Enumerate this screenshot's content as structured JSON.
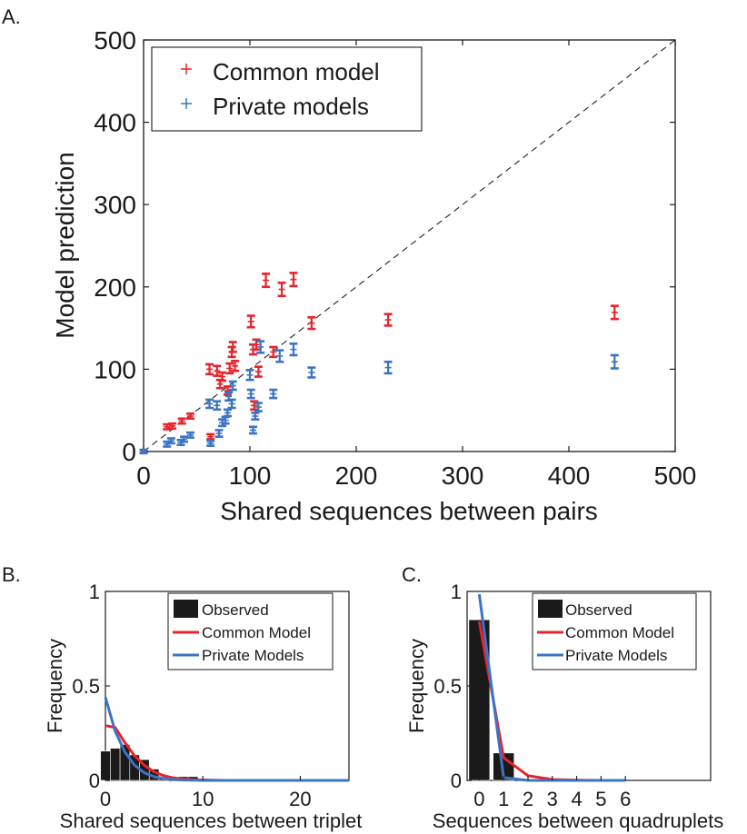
{
  "colors": {
    "common": "#e8232b",
    "private": "#3b74c3",
    "observed": "#1a1a1a",
    "diagonal": "#222222"
  },
  "chart_data": [
    {
      "panel": "A.",
      "type": "scatter",
      "xlabel": "Shared sequences between pairs",
      "ylabel": "Model prediction",
      "xlim": [
        0,
        500
      ],
      "ylim": [
        0,
        500
      ],
      "xticks": [
        "0",
        "100",
        "200",
        "300",
        "400",
        "500"
      ],
      "yticks": [
        "0",
        "100",
        "200",
        "300",
        "400",
        "500"
      ],
      "legend": {
        "position": "top-left",
        "marker": "+",
        "entries": [
          "Common model",
          "Private models"
        ]
      },
      "diagonal": "y = x (dashed)",
      "series": [
        {
          "name": "Common model",
          "points": [
            {
              "x": 0,
              "y": 0,
              "err": 2
            },
            {
              "x": 22,
              "y": 30,
              "err": 3
            },
            {
              "x": 27,
              "y": 31,
              "err": 3
            },
            {
              "x": 36,
              "y": 37,
              "err": 3
            },
            {
              "x": 44,
              "y": 43,
              "err": 3
            },
            {
              "x": 63,
              "y": 18,
              "err": 3
            },
            {
              "x": 62,
              "y": 100,
              "err": 6
            },
            {
              "x": 69,
              "y": 98,
              "err": 6
            },
            {
              "x": 72,
              "y": 82,
              "err": 5
            },
            {
              "x": 74,
              "y": 91,
              "err": 5
            },
            {
              "x": 79,
              "y": 74,
              "err": 5
            },
            {
              "x": 81,
              "y": 101,
              "err": 6
            },
            {
              "x": 83,
              "y": 121,
              "err": 6
            },
            {
              "x": 84,
              "y": 127,
              "err": 6
            },
            {
              "x": 86,
              "y": 104,
              "err": 6
            },
            {
              "x": 101,
              "y": 158,
              "err": 7
            },
            {
              "x": 103,
              "y": 124,
              "err": 6
            },
            {
              "x": 104,
              "y": 56,
              "err": 5
            },
            {
              "x": 106,
              "y": 130,
              "err": 6
            },
            {
              "x": 108,
              "y": 97,
              "err": 6
            },
            {
              "x": 115,
              "y": 208,
              "err": 8
            },
            {
              "x": 122,
              "y": 121,
              "err": 6
            },
            {
              "x": 130,
              "y": 197,
              "err": 8
            },
            {
              "x": 141,
              "y": 209,
              "err": 8
            },
            {
              "x": 158,
              "y": 156,
              "err": 7
            },
            {
              "x": 230,
              "y": 160,
              "err": 7
            },
            {
              "x": 443,
              "y": 169,
              "err": 8
            }
          ]
        },
        {
          "name": "Private models",
          "points": [
            {
              "x": 0,
              "y": 0,
              "err": 2
            },
            {
              "x": 22,
              "y": 9,
              "err": 3
            },
            {
              "x": 26,
              "y": 13,
              "err": 3
            },
            {
              "x": 35,
              "y": 11,
              "err": 3
            },
            {
              "x": 38,
              "y": 15,
              "err": 3
            },
            {
              "x": 44,
              "y": 20,
              "err": 3
            },
            {
              "x": 63,
              "y": 10,
              "err": 3
            },
            {
              "x": 62,
              "y": 58,
              "err": 5
            },
            {
              "x": 69,
              "y": 56,
              "err": 5
            },
            {
              "x": 71,
              "y": 22,
              "err": 4
            },
            {
              "x": 74,
              "y": 35,
              "err": 4
            },
            {
              "x": 77,
              "y": 38,
              "err": 4
            },
            {
              "x": 79,
              "y": 47,
              "err": 4
            },
            {
              "x": 80,
              "y": 67,
              "err": 5
            },
            {
              "x": 83,
              "y": 58,
              "err": 5
            },
            {
              "x": 84,
              "y": 80,
              "err": 5
            },
            {
              "x": 100,
              "y": 93,
              "err": 6
            },
            {
              "x": 101,
              "y": 70,
              "err": 5
            },
            {
              "x": 103,
              "y": 26,
              "err": 4
            },
            {
              "x": 105,
              "y": 43,
              "err": 4
            },
            {
              "x": 108,
              "y": 54,
              "err": 5
            },
            {
              "x": 110,
              "y": 127,
              "err": 7
            },
            {
              "x": 122,
              "y": 70,
              "err": 5
            },
            {
              "x": 128,
              "y": 116,
              "err": 7
            },
            {
              "x": 141,
              "y": 124,
              "err": 7
            },
            {
              "x": 158,
              "y": 96,
              "err": 6
            },
            {
              "x": 230,
              "y": 102,
              "err": 7
            },
            {
              "x": 443,
              "y": 109,
              "err": 8
            }
          ]
        }
      ]
    },
    {
      "panel": "B.",
      "type": "bar",
      "xlabel": "Shared sequences between triplet",
      "ylabel": "Frequency",
      "xlim": [
        0,
        25
      ],
      "ylim": [
        0,
        1
      ],
      "xticks": [
        "0",
        "10",
        "20"
      ],
      "yticks": [
        "0",
        "0.5",
        "1"
      ],
      "legend": {
        "position": "top-right",
        "entries": [
          "Observed",
          "Common Model",
          "Private Models"
        ]
      },
      "bars": {
        "name": "Observed",
        "x": [
          0,
          1,
          2,
          3,
          4,
          5,
          6,
          7,
          8,
          9,
          10,
          11,
          12,
          13,
          14,
          15,
          16,
          17,
          18,
          19,
          20,
          21,
          22,
          23,
          24,
          25
        ],
        "values": [
          0.155,
          0.17,
          0.19,
          0.135,
          0.11,
          0.06,
          0.01,
          0.0,
          0.02,
          0.02,
          0.01,
          0,
          0,
          0,
          0,
          0,
          0,
          0,
          0,
          0,
          0,
          0,
          0,
          0,
          0,
          0
        ]
      },
      "lines": [
        {
          "name": "Common Model",
          "x": [
            0,
            1,
            2,
            3,
            4,
            5,
            6,
            7,
            8,
            9,
            10,
            11,
            12,
            15,
            20,
            25
          ],
          "values": [
            0.29,
            0.28,
            0.2,
            0.13,
            0.08,
            0.045,
            0.025,
            0.013,
            0.007,
            0.004,
            0.002,
            0.001,
            0.0,
            0.0,
            0.0,
            0.0
          ]
        },
        {
          "name": "Private Models",
          "x": [
            0,
            1,
            2,
            3,
            4,
            5,
            6,
            7,
            8,
            9,
            10,
            12,
            15,
            20,
            25
          ],
          "values": [
            0.44,
            0.26,
            0.15,
            0.08,
            0.04,
            0.02,
            0.01,
            0.005,
            0.002,
            0.001,
            0.0,
            0.0,
            0.0,
            0.0,
            0.0
          ]
        }
      ]
    },
    {
      "panel": "C.",
      "type": "bar",
      "xlabel": "Sequences between quadruplets",
      "ylabel": "Frequency",
      "xlim": [
        -0.5,
        9.5
      ],
      "ylim": [
        0,
        1
      ],
      "xticks": [
        "0",
        "1",
        "2",
        "3",
        "4",
        "5",
        "6"
      ],
      "yticks": [
        "0",
        "0.5",
        "1"
      ],
      "legend": {
        "position": "top-right",
        "entries": [
          "Observed",
          "Common Model",
          "Private Models"
        ]
      },
      "bars": {
        "name": "Observed",
        "x": [
          0,
          1,
          2,
          3,
          4,
          5,
          6
        ],
        "values": [
          0.85,
          0.145,
          0,
          0,
          0,
          0,
          0
        ]
      },
      "lines": [
        {
          "name": "Common Model",
          "x": [
            0,
            1,
            2,
            3,
            4,
            5,
            6
          ],
          "values": [
            0.84,
            0.12,
            0.025,
            0.005,
            0.001,
            0.0,
            0.0
          ]
        },
        {
          "name": "Private Models",
          "x": [
            0,
            1,
            2,
            3,
            4,
            5,
            6
          ],
          "values": [
            0.985,
            0.015,
            0.0,
            0.0,
            0.0,
            0.0,
            0.0
          ]
        }
      ]
    }
  ]
}
